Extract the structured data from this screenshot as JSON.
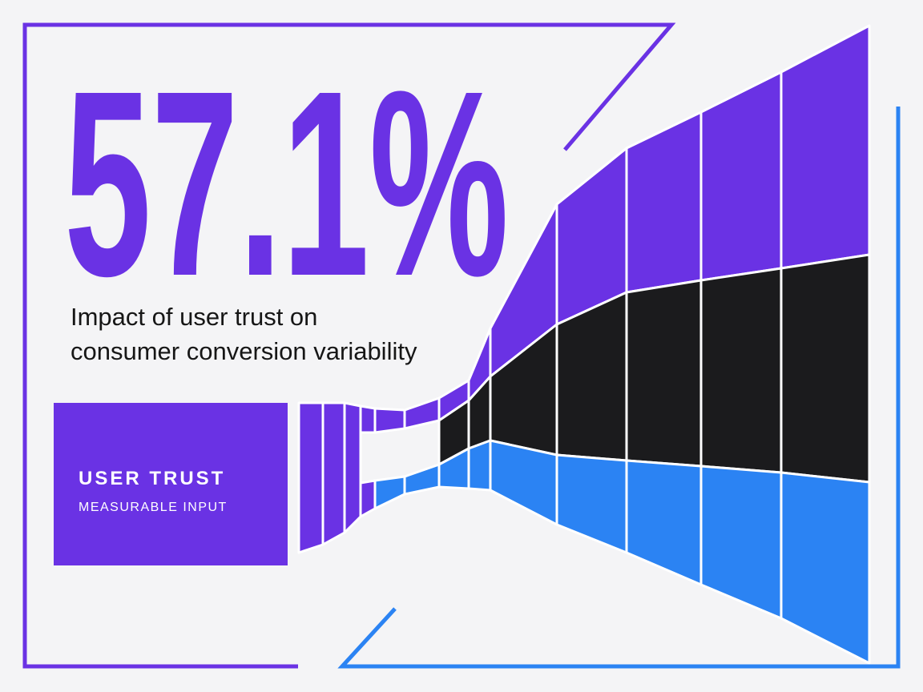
{
  "headline": "57.1%",
  "subtitle": [
    "Impact of user trust on",
    "consumer conversion variability"
  ],
  "input_box": {
    "title": "USER TRUST",
    "caption": "MEASURABLE INPUT"
  }
}
